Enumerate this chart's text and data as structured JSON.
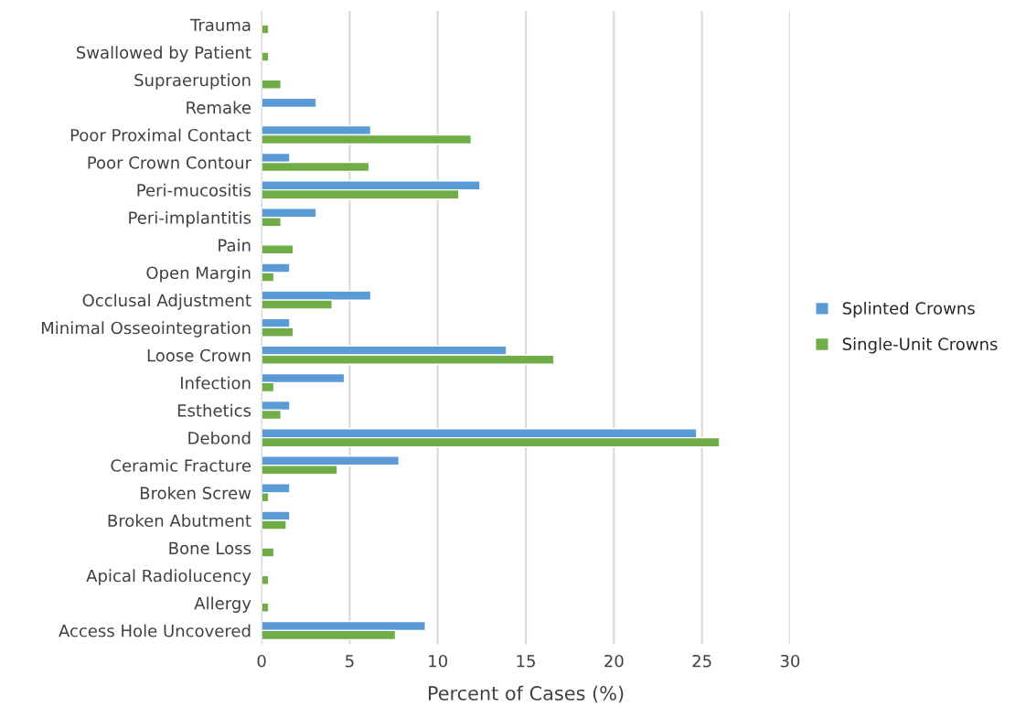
{
  "chart_data": {
    "type": "bar",
    "orientation": "horizontal",
    "xlabel": "Percent of Cases (%)",
    "categories": [
      "Trauma",
      "Swallowed by Patient",
      "Supraeruption",
      "Remake",
      "Poor Proximal Contact",
      "Poor Crown Contour",
      "Peri-mucositis",
      "Peri-implantitis",
      "Pain",
      "Open Margin",
      "Occlusal Adjustment",
      "Minimal Osseointegration",
      "Loose Crown",
      "Infection",
      "Esthetics",
      "Debond",
      "Ceramic Fracture",
      "Broken Screw",
      "Broken Abutment",
      "Bone Loss",
      "Apical Radiolucency",
      "Allergy",
      "Access Hole Uncovered"
    ],
    "series": [
      {
        "name": "Splinted Crowns",
        "color": "#5b9bd5",
        "values": [
          null,
          null,
          null,
          3.1,
          6.2,
          1.6,
          12.4,
          3.1,
          null,
          1.6,
          6.2,
          1.6,
          13.9,
          4.7,
          1.6,
          24.7,
          7.8,
          1.6,
          1.6,
          null,
          null,
          null,
          9.3
        ]
      },
      {
        "name": "Single-Unit Crowns",
        "color": "#70ad47",
        "values": [
          0.4,
          0.4,
          1.1,
          null,
          11.9,
          6.1,
          11.2,
          1.1,
          1.8,
          0.7,
          4.0,
          1.8,
          16.6,
          0.7,
          1.1,
          26.0,
          4.3,
          0.4,
          1.4,
          0.7,
          0.4,
          0.4,
          7.6
        ]
      }
    ],
    "xlim": [
      0,
      30
    ],
    "xticks": [
      0,
      5,
      10,
      15,
      20,
      25,
      30
    ],
    "grid": "x",
    "legend": "right"
  }
}
